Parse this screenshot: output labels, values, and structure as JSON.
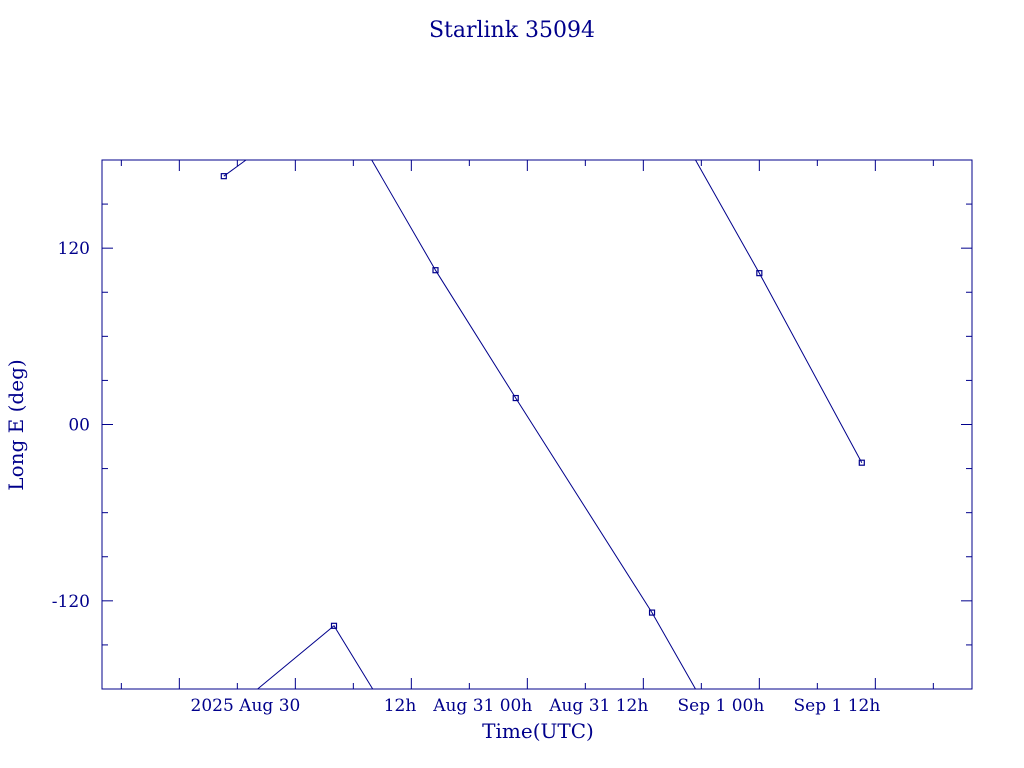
{
  "chart_data": {
    "type": "line",
    "title": "Starlink 35094",
    "xlabel": "Time(UTC)",
    "ylabel": "Long E (deg)",
    "x_unit": "hours",
    "xlim": [
      -20,
      70
    ],
    "ylim": [
      -180,
      180
    ],
    "x_ticks": [
      {
        "x": 0,
        "label": "2025  Aug 30"
      },
      {
        "x": 12,
        "label": "12h"
      },
      {
        "x": 24,
        "label": "Aug 31   00h"
      },
      {
        "x": 36,
        "label": "Aug 31   12h"
      },
      {
        "x": 48,
        "label": "Sep   1   00h"
      },
      {
        "x": 60,
        "label": "Sep   1   12h"
      }
    ],
    "y_ticks": [
      {
        "y": 120,
        "label": "120"
      },
      {
        "y": 0,
        "label": "00"
      },
      {
        "y": -120,
        "label": "-120"
      }
    ],
    "color": "#00008b",
    "segments": [
      {
        "points": [
          [
            -7.4,
            169
          ],
          [
            -5.1,
            180
          ]
        ]
      },
      {
        "points": [
          [
            -3.9,
            -180
          ],
          [
            4.0,
            -137
          ],
          [
            8.0,
            -180
          ]
        ]
      },
      {
        "points": [
          [
            7.9,
            180
          ],
          [
            14.5,
            105
          ],
          [
            22.8,
            18
          ],
          [
            36.9,
            -128
          ],
          [
            41.4,
            -180
          ]
        ]
      },
      {
        "points": [
          [
            41.4,
            180
          ],
          [
            48.0,
            103
          ],
          [
            58.6,
            -26
          ]
        ]
      }
    ],
    "markers": [
      [
        -7.4,
        169
      ],
      [
        4.0,
        -137
      ],
      [
        14.5,
        105
      ],
      [
        22.8,
        18
      ],
      [
        36.9,
        -128
      ],
      [
        48.0,
        103
      ],
      [
        58.6,
        -26
      ]
    ]
  }
}
